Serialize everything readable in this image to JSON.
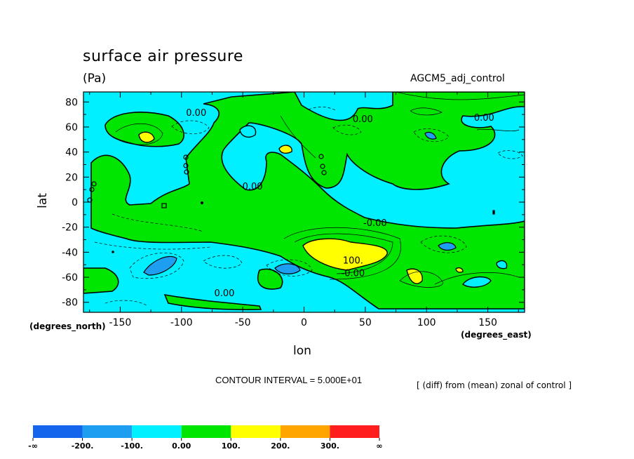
{
  "chart_data": {
    "type": "heatmap",
    "title": "surface air pressure",
    "units": "(Pa)",
    "source_label": "AGCM5_adj_control",
    "xlabel": "lon",
    "ylabel": "lat",
    "x_unit_note": "(degrees_east)",
    "y_unit_note": "(degrees_north)",
    "xlim": [
      -180,
      180
    ],
    "ylim": [
      -88,
      88
    ],
    "x_ticks": [
      -150,
      -100,
      -50,
      0,
      50,
      100,
      150
    ],
    "y_ticks": [
      80,
      60,
      40,
      20,
      0,
      -20,
      -40,
      -60,
      -80
    ],
    "contour_interval": "CONTOUR INTERVAL = 5.000E+01",
    "footnote": "[ (diff) from (mean) zonal of control ]",
    "contour_labels": [
      {
        "text": "0.00",
        "lon": -88,
        "lat": 69
      },
      {
        "text": "0.00",
        "lon": 48,
        "lat": 64
      },
      {
        "text": "0.00",
        "lon": 147,
        "lat": 65
      },
      {
        "text": "0.00",
        "lon": -42,
        "lat": 10
      },
      {
        "text": "-0.00",
        "lon": 58,
        "lat": -19
      },
      {
        "text": "100.",
        "lon": 40,
        "lat": -49
      },
      {
        "text": "-0.00",
        "lon": 40,
        "lat": -59
      },
      {
        "text": "0.00",
        "lon": -65,
        "lat": -75
      }
    ],
    "colorbar": {
      "colors": [
        "#1464ec",
        "#1e9ef0",
        "#00f0ff",
        "#00e600",
        "#ffff00",
        "#ffa500",
        "#ff1e1e"
      ],
      "labels": [
        "-∞",
        "-200.",
        "-100.",
        "0.00",
        "100.",
        "200.",
        "300.",
        "∞"
      ]
    },
    "colors": {
      "positive": "#00e600",
      "negative": "#00f0ff",
      "strong_positive": "#ffff00",
      "strong_negative": "#1e9ef0",
      "very_strong_positive": "#ffa500"
    }
  }
}
